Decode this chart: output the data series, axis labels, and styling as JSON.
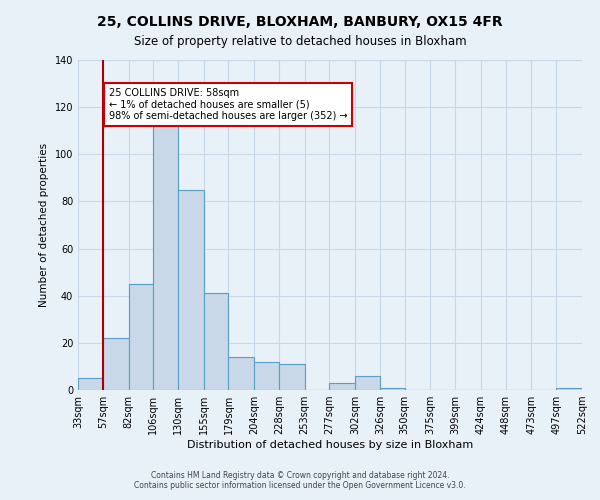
{
  "title": "25, COLLINS DRIVE, BLOXHAM, BANBURY, OX15 4FR",
  "subtitle": "Size of property relative to detached houses in Bloxham",
  "xlabel": "Distribution of detached houses by size in Bloxham",
  "ylabel": "Number of detached properties",
  "bin_edges": [
    33,
    57,
    82,
    106,
    130,
    155,
    179,
    204,
    228,
    253,
    277,
    302,
    326,
    350,
    375,
    399,
    424,
    448,
    473,
    497,
    522
  ],
  "bin_labels": [
    "33sqm",
    "57sqm",
    "82sqm",
    "106sqm",
    "130sqm",
    "155sqm",
    "179sqm",
    "204sqm",
    "228sqm",
    "253sqm",
    "277sqm",
    "302sqm",
    "326sqm",
    "350sqm",
    "375sqm",
    "399sqm",
    "424sqm",
    "448sqm",
    "473sqm",
    "497sqm",
    "522sqm"
  ],
  "counts": [
    5,
    22,
    45,
    114,
    85,
    41,
    14,
    12,
    11,
    0,
    3,
    6,
    1,
    0,
    0,
    0,
    0,
    0,
    0,
    1
  ],
  "bar_facecolor": "#c8d8e8",
  "bar_edgecolor": "#5a9ec8",
  "vline_x": 57,
  "vline_color": "#aa0000",
  "annotation_text": "25 COLLINS DRIVE: 58sqm\n← 1% of detached houses are smaller (5)\n98% of semi-detached houses are larger (352) →",
  "annotation_box_edgecolor": "#cc0000",
  "annotation_box_facecolor": "#ffffff",
  "ylim": [
    0,
    140
  ],
  "yticks": [
    0,
    20,
    40,
    60,
    80,
    100,
    120,
    140
  ],
  "grid_color": "#c8d8e8",
  "background_color": "#e8f0f8",
  "footer_line1": "Contains HM Land Registry data © Crown copyright and database right 2024.",
  "footer_line2": "Contains public sector information licensed under the Open Government Licence v3.0."
}
